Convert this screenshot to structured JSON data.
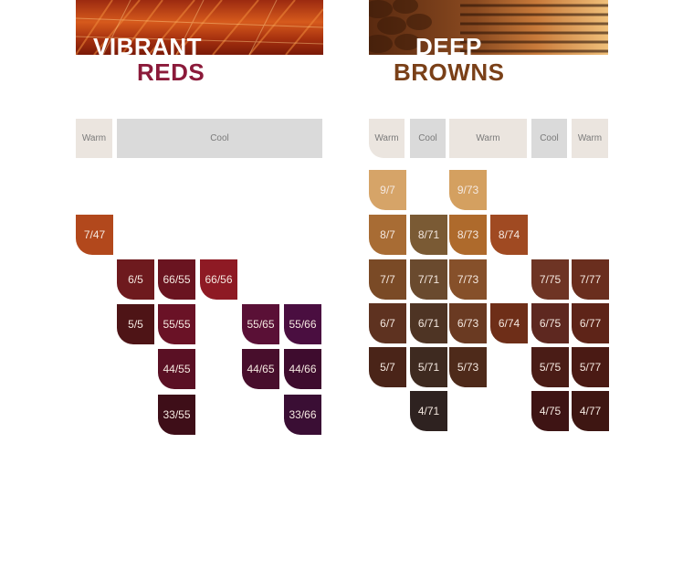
{
  "reds": {
    "title_line1": "VIBRANT",
    "title_line2": "REDS",
    "title2_color": "#8b1a3a",
    "headers": [
      "Warm",
      "Cool"
    ],
    "swatches": [
      {
        "label": "7/47",
        "color": "#b2481c"
      },
      {
        "label": "6/5",
        "color": "#6e1a1e"
      },
      {
        "label": "66/55",
        "color": "#6a1420"
      },
      {
        "label": "66/56",
        "color": "#8e1a24"
      },
      {
        "label": "5/5",
        "color": "#4e1416"
      },
      {
        "label": "55/55",
        "color": "#6a1226"
      },
      {
        "label": "55/65",
        "color": "#5a1036"
      },
      {
        "label": "55/66",
        "color": "#4a0e40"
      },
      {
        "label": "44/55",
        "color": "#5a1024"
      },
      {
        "label": "44/65",
        "color": "#480e2c"
      },
      {
        "label": "44/66",
        "color": "#3e0c2e"
      },
      {
        "label": "33/55",
        "color": "#3e0e18"
      },
      {
        "label": "33/66",
        "color": "#3a0e34"
      }
    ]
  },
  "browns": {
    "title_line1": "DEEP",
    "title_line2": "BROWNS",
    "title2_color": "#7a4018",
    "headers": [
      "Warm",
      "Cool",
      "Warm",
      "Cool",
      "Warm"
    ],
    "swatches": [
      {
        "label": "9/7",
        "color": "#d6a468"
      },
      {
        "label": "9/73",
        "color": "#d4a060"
      },
      {
        "label": "8/7",
        "color": "#a86c34"
      },
      {
        "label": "8/71",
        "color": "#7a5a34"
      },
      {
        "label": "8/73",
        "color": "#ae6a2c"
      },
      {
        "label": "8/74",
        "color": "#a04a22"
      },
      {
        "label": "7/7",
        "color": "#7a4a26"
      },
      {
        "label": "7/71",
        "color": "#6a4a2e"
      },
      {
        "label": "7/73",
        "color": "#86502a"
      },
      {
        "label": "7/75",
        "color": "#6e3424"
      },
      {
        "label": "7/77",
        "color": "#6a2e1e"
      },
      {
        "label": "6/7",
        "color": "#5e3220"
      },
      {
        "label": "6/71",
        "color": "#4e3424"
      },
      {
        "label": "6/73",
        "color": "#6a3a22"
      },
      {
        "label": "6/74",
        "color": "#6e2e18"
      },
      {
        "label": "6/75",
        "color": "#5e2820"
      },
      {
        "label": "6/77",
        "color": "#5e2418"
      },
      {
        "label": "5/7",
        "color": "#4a2418"
      },
      {
        "label": "5/71",
        "color": "#3e2a20"
      },
      {
        "label": "5/73",
        "color": "#4e2a1a"
      },
      {
        "label": "5/75",
        "color": "#4a1c16"
      },
      {
        "label": "5/77",
        "color": "#4a1a14"
      },
      {
        "label": "4/71",
        "color": "#2e2220"
      },
      {
        "label": "4/75",
        "color": "#3e1414"
      },
      {
        "label": "4/77",
        "color": "#3e1612"
      }
    ]
  }
}
